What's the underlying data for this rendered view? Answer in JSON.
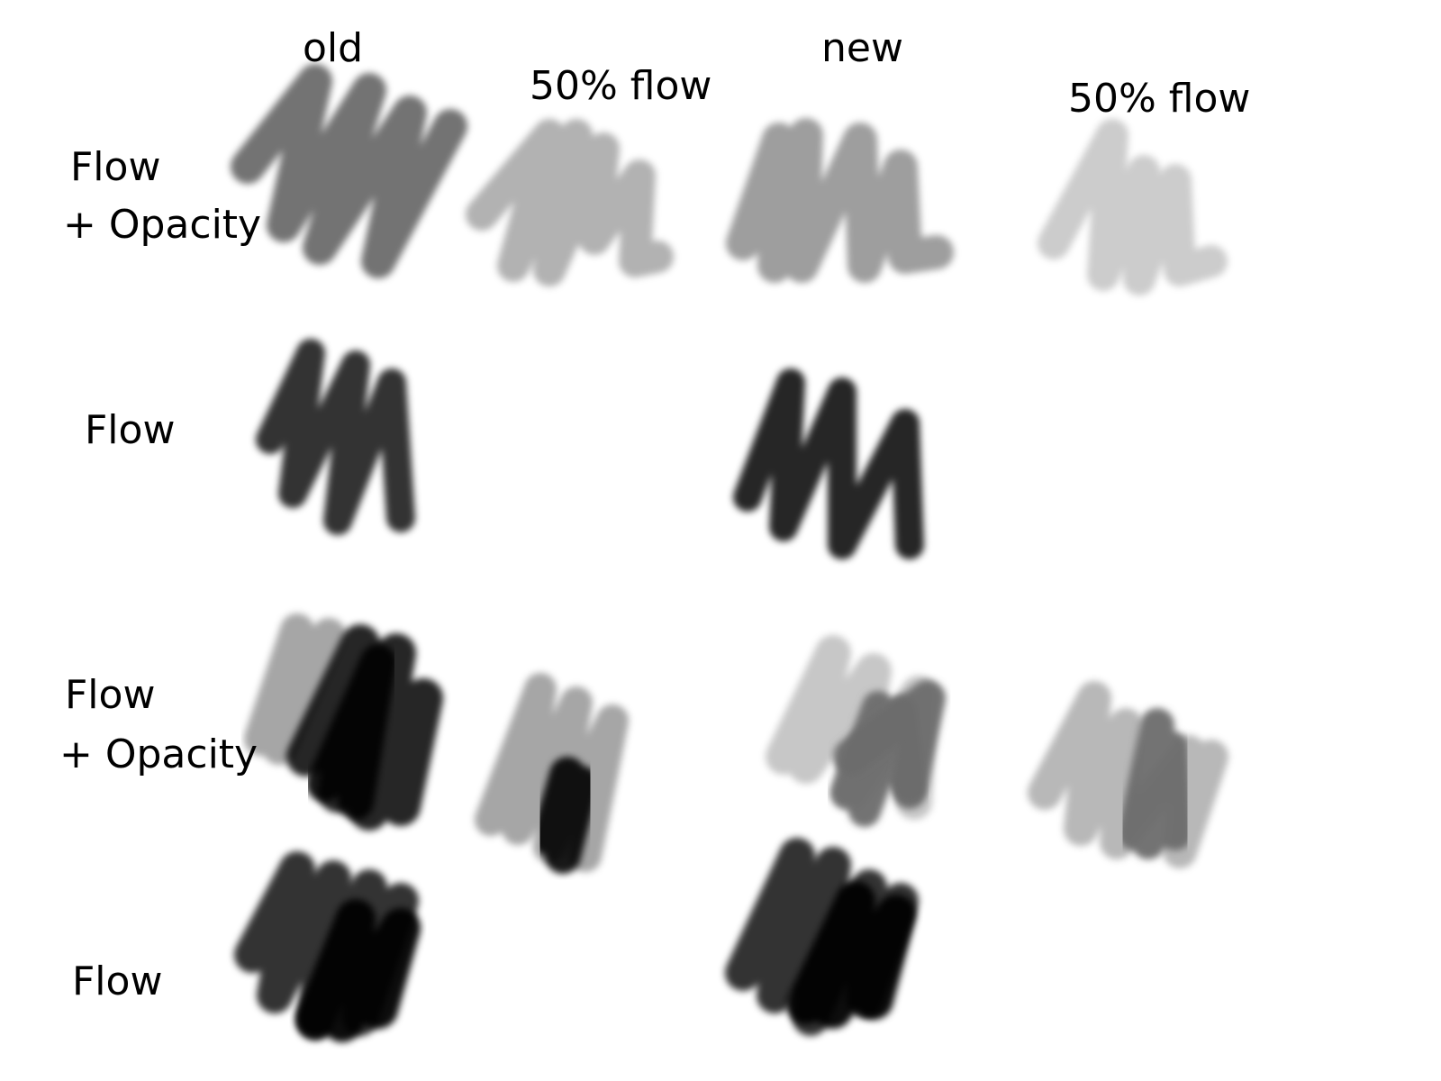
{
  "headers": {
    "old": "old",
    "old_half_flow": "50% flow",
    "new": "new",
    "new_half_flow": "50% flow"
  },
  "rows": [
    {
      "line1": "Flow",
      "line2": "+ Opacity"
    },
    {
      "line1": "Flow"
    },
    {
      "line1": "Flow",
      "line2": "+ Opacity"
    },
    {
      "line1": "Flow"
    }
  ],
  "colors": {
    "background": "#ffffff",
    "stroke_black": "#000000",
    "stroke_mid_gray": "#6b6b6b",
    "label_text": "#000000"
  }
}
